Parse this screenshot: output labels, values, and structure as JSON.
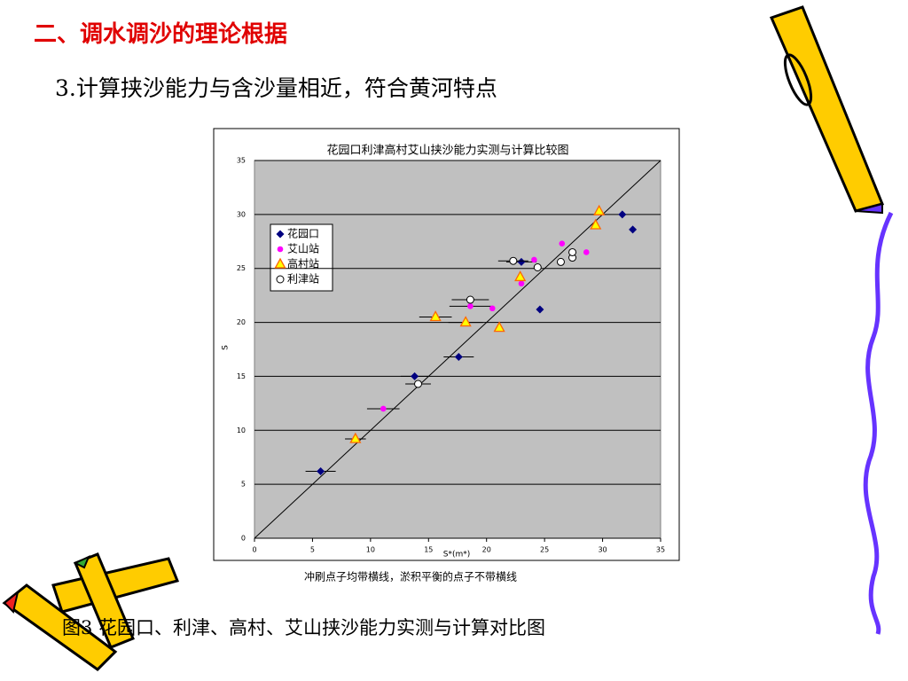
{
  "header": {
    "title": "二、调水调沙的理论根据",
    "subtitle": "3.计算挟沙能力与含沙量相近，符合黄河特点"
  },
  "caption": "图3  花园口、利津、高村、艾山挟沙能力实测与计算对比图",
  "chart_data": {
    "type": "scatter",
    "title": "花园口利津高村艾山挟沙能力实测与计算比较图",
    "x_label": "S*(m*)",
    "y_label": "S",
    "note": "冲刷点子均带横线，淤积平衡的点子不带横线",
    "xlim": [
      0,
      35
    ],
    "ylim": [
      0,
      35
    ],
    "xticks": [
      0,
      5,
      10,
      15,
      20,
      25,
      30,
      35
    ],
    "yticks": [
      0,
      5,
      10,
      15,
      20,
      25,
      30,
      35
    ],
    "grid": true,
    "legend": "upper left",
    "reference_line": "y=x",
    "series": [
      {
        "name": "花园口",
        "marker": "diamond",
        "color": "#000080",
        "x": [
          5.7,
          13.8,
          17.6,
          23.0,
          24.6,
          31.7,
          32.6
        ],
        "values": [
          6.2,
          15.0,
          16.8,
          25.6,
          21.2,
          30.0,
          28.6
        ],
        "xerr": [
          1.3,
          1.2,
          1.3,
          1.3,
          null,
          null,
          null
        ]
      },
      {
        "name": "艾山站",
        "marker": "dot",
        "color": "#ff00ff",
        "x": [
          11.1,
          18.6,
          20.5,
          23.0,
          24.1,
          26.5,
          28.6
        ],
        "values": [
          12.0,
          21.5,
          21.3,
          23.6,
          25.8,
          27.3,
          26.5
        ],
        "xerr": [
          1.4,
          1.8,
          null,
          null,
          null,
          null,
          null
        ]
      },
      {
        "name": "高村站",
        "marker": "triangle",
        "color": "#ff6600",
        "x": [
          8.7,
          15.6,
          18.2,
          21.1,
          22.9,
          29.4,
          29.7
        ],
        "values": [
          9.2,
          20.5,
          20.0,
          19.5,
          24.2,
          29.0,
          30.3
        ],
        "xerr": [
          0.9,
          1.4,
          1.5,
          null,
          null,
          null,
          null
        ]
      },
      {
        "name": "利津站",
        "marker": "circle",
        "color": "#000000",
        "x": [
          14.1,
          18.6,
          22.3,
          24.4,
          26.4,
          27.4,
          27.4
        ],
        "values": [
          14.3,
          22.1,
          25.7,
          25.1,
          25.6,
          26.0,
          26.5
        ],
        "xerr": [
          1.1,
          1.6,
          1.3,
          null,
          null,
          null,
          null
        ]
      }
    ]
  }
}
